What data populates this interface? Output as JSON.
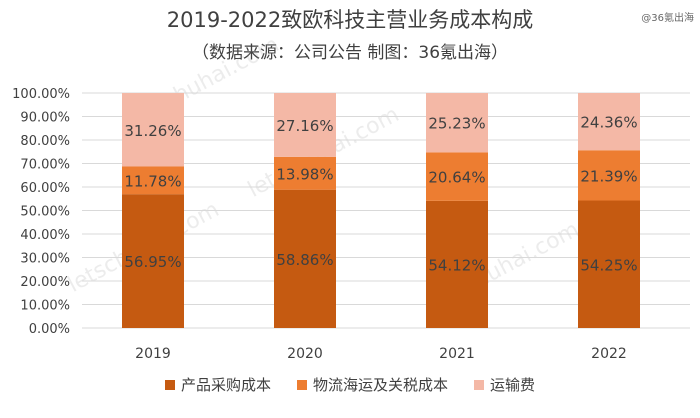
{
  "title": "2019-2022致欧科技主营业务成本构成",
  "subtitle": "（数据来源：公司公告 制图：36氪出海）",
  "source_tag": "@36氪出海",
  "watermark": "letschuhai.com",
  "colors": {
    "product": "#C55A11",
    "tariff": "#ED7D31",
    "shipping": "#F4B8A6",
    "gridline": "#d9d9d9"
  },
  "chart_data": {
    "type": "bar",
    "stacked": true,
    "categories": [
      "2019",
      "2020",
      "2021",
      "2022"
    ],
    "series": [
      {
        "name": "产品采购成本",
        "values": [
          56.95,
          58.86,
          54.12,
          54.25
        ],
        "labels": [
          "56.95%",
          "58.86%",
          "54.12%",
          "54.25%"
        ]
      },
      {
        "name": "物流海运及关税成本",
        "values": [
          11.78,
          13.98,
          20.64,
          21.39
        ],
        "labels": [
          "11.78%",
          "13.98%",
          "20.64%",
          "21.39%"
        ]
      },
      {
        "name": "运输费",
        "values": [
          31.26,
          27.16,
          25.23,
          24.36
        ],
        "labels": [
          "31.26%",
          "27.16%",
          "25.23%",
          "24.36%"
        ]
      }
    ],
    "y_ticks": [
      "0.00%",
      "10.00%",
      "20.00%",
      "30.00%",
      "40.00%",
      "50.00%",
      "60.00%",
      "70.00%",
      "80.00%",
      "90.00%",
      "100.00%"
    ],
    "ylim": [
      0,
      100
    ],
    "legend_position": "bottom"
  }
}
